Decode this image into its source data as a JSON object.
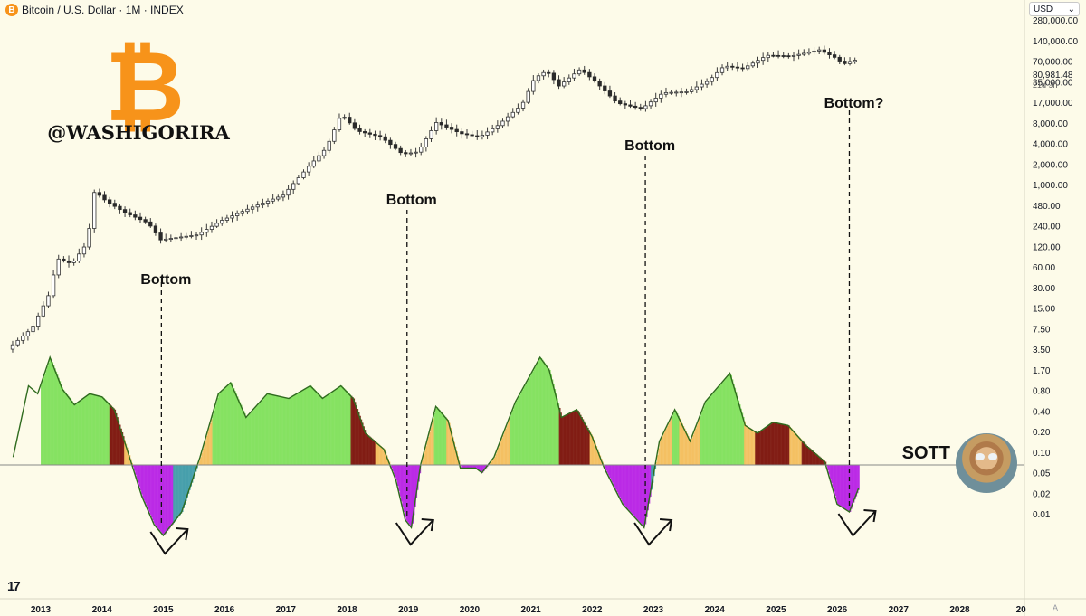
{
  "header": {
    "title": "Bitcoin / U.S. Dollar · 1M · INDEX",
    "currency_label": "USD",
    "currency_caret": "⌄"
  },
  "watermark": {
    "handle": "@WASHIGORIRA",
    "coin_symbol": "₿"
  },
  "logo_mark": "17",
  "axis_corner_label": "A",
  "colors": {
    "background": "#fdfbe9",
    "btc_orange": "#f7931a",
    "candle_up_border": "#333333",
    "candle_down": "#2a2a2a",
    "sott_line": "#2f6b1e",
    "sott_bull_fill": "#7ee05a",
    "sott_mild_fill": "#f1b54a",
    "sott_bear_fill": "#7a0f08",
    "sott_oversold_fill": "#b71ee6",
    "sott_neutral_fill": "#3d9aa8",
    "zero_line": "#888888"
  },
  "chart_data": {
    "type": "line",
    "series_main": "Bitcoin / U.S. Dollar monthly candles (log scale)",
    "current_price_label": "80,981.48",
    "countdown_label": "21d 9h",
    "x_ticks": [
      "2013",
      "2014",
      "2015",
      "2016",
      "2017",
      "2018",
      "2019",
      "2020",
      "2021",
      "2022",
      "2023",
      "2024",
      "2025",
      "2026",
      "2027",
      "2028",
      "20"
    ],
    "price_axis_ticks": [
      "280,000.00",
      "140,000.00",
      "70,000.00",
      "35,000.00",
      "17,000.00",
      "8,000.00",
      "4,000.00",
      "2,000.00",
      "1,000.00",
      "480.00",
      "240.00",
      "120.00",
      "60.00",
      "30.00",
      "15.00",
      "7.50",
      "3.50",
      "1.70",
      "0.80",
      "0.40",
      "0.20",
      "0.10",
      "0.05",
      "0.02",
      "0.01"
    ],
    "price_axis_scale": "log",
    "price_points": [
      {
        "x": 2012.5,
        "y": 6
      },
      {
        "x": 2012.9,
        "y": 12
      },
      {
        "x": 2013.2,
        "y": 40
      },
      {
        "x": 2013.3,
        "y": 120
      },
      {
        "x": 2013.55,
        "y": 100
      },
      {
        "x": 2013.8,
        "y": 200
      },
      {
        "x": 2013.92,
        "y": 1100
      },
      {
        "x": 2014.1,
        "y": 800
      },
      {
        "x": 2014.4,
        "y": 550
      },
      {
        "x": 2014.8,
        "y": 380
      },
      {
        "x": 2015.0,
        "y": 220
      },
      {
        "x": 2015.3,
        "y": 240
      },
      {
        "x": 2015.6,
        "y": 260
      },
      {
        "x": 2016.0,
        "y": 420
      },
      {
        "x": 2016.5,
        "y": 650
      },
      {
        "x": 2017.0,
        "y": 960
      },
      {
        "x": 2017.4,
        "y": 2400
      },
      {
        "x": 2017.7,
        "y": 4500
      },
      {
        "x": 2017.95,
        "y": 14000
      },
      {
        "x": 2018.2,
        "y": 8000
      },
      {
        "x": 2018.6,
        "y": 6500
      },
      {
        "x": 2018.95,
        "y": 3700
      },
      {
        "x": 2019.2,
        "y": 4000
      },
      {
        "x": 2019.5,
        "y": 10500
      },
      {
        "x": 2019.9,
        "y": 7300
      },
      {
        "x": 2020.2,
        "y": 6500
      },
      {
        "x": 2020.5,
        "y": 9500
      },
      {
        "x": 2020.9,
        "y": 19000
      },
      {
        "x": 2021.1,
        "y": 45000
      },
      {
        "x": 2021.3,
        "y": 58000
      },
      {
        "x": 2021.5,
        "y": 35000
      },
      {
        "x": 2021.85,
        "y": 61000
      },
      {
        "x": 2022.1,
        "y": 40000
      },
      {
        "x": 2022.45,
        "y": 20000
      },
      {
        "x": 2022.85,
        "y": 16500
      },
      {
        "x": 2023.2,
        "y": 28000
      },
      {
        "x": 2023.6,
        "y": 29000
      },
      {
        "x": 2023.95,
        "y": 42000
      },
      {
        "x": 2024.2,
        "y": 68000
      },
      {
        "x": 2024.5,
        "y": 62000
      },
      {
        "x": 2024.9,
        "y": 96000
      },
      {
        "x": 2025.3,
        "y": 94000
      },
      {
        "x": 2025.75,
        "y": 115000
      },
      {
        "x": 2026.0,
        "y": 90000
      },
      {
        "x": 2026.15,
        "y": 72000
      },
      {
        "x": 2026.3,
        "y": 82000
      }
    ],
    "sott": {
      "name": "SOTT",
      "zero_line": 0,
      "points": [
        {
          "x": 2012.55,
          "y": 0.05
        },
        {
          "x": 2012.8,
          "y": 0.5
        },
        {
          "x": 2012.95,
          "y": 0.45
        },
        {
          "x": 2013.15,
          "y": 0.68
        },
        {
          "x": 2013.35,
          "y": 0.48
        },
        {
          "x": 2013.55,
          "y": 0.38
        },
        {
          "x": 2013.8,
          "y": 0.45
        },
        {
          "x": 2014.0,
          "y": 0.43
        },
        {
          "x": 2014.2,
          "y": 0.35
        },
        {
          "x": 2014.45,
          "y": 0.05
        },
        {
          "x": 2014.65,
          "y": -0.2
        },
        {
          "x": 2014.85,
          "y": -0.38
        },
        {
          "x": 2015.0,
          "y": -0.45
        },
        {
          "x": 2015.3,
          "y": -0.3
        },
        {
          "x": 2015.6,
          "y": 0.05
        },
        {
          "x": 2015.9,
          "y": 0.45
        },
        {
          "x": 2016.1,
          "y": 0.52
        },
        {
          "x": 2016.35,
          "y": 0.3
        },
        {
          "x": 2016.7,
          "y": 0.45
        },
        {
          "x": 2017.05,
          "y": 0.42
        },
        {
          "x": 2017.4,
          "y": 0.5
        },
        {
          "x": 2017.6,
          "y": 0.42
        },
        {
          "x": 2017.9,
          "y": 0.5
        },
        {
          "x": 2018.1,
          "y": 0.42
        },
        {
          "x": 2018.3,
          "y": 0.2
        },
        {
          "x": 2018.6,
          "y": 0.1
        },
        {
          "x": 2018.8,
          "y": -0.1
        },
        {
          "x": 2018.95,
          "y": -0.35
        },
        {
          "x": 2019.05,
          "y": -0.4
        },
        {
          "x": 2019.2,
          "y": 0.0
        },
        {
          "x": 2019.45,
          "y": 0.37
        },
        {
          "x": 2019.65,
          "y": 0.28
        },
        {
          "x": 2019.85,
          "y": -0.02
        },
        {
          "x": 2020.1,
          "y": -0.02
        },
        {
          "x": 2020.2,
          "y": -0.05
        },
        {
          "x": 2020.4,
          "y": 0.05
        },
        {
          "x": 2020.75,
          "y": 0.4
        },
        {
          "x": 2021.15,
          "y": 0.68
        },
        {
          "x": 2021.3,
          "y": 0.6
        },
        {
          "x": 2021.5,
          "y": 0.3
        },
        {
          "x": 2021.75,
          "y": 0.35
        },
        {
          "x": 2022.0,
          "y": 0.18
        },
        {
          "x": 2022.2,
          "y": -0.02
        },
        {
          "x": 2022.5,
          "y": -0.25
        },
        {
          "x": 2022.85,
          "y": -0.4
        },
        {
          "x": 2023.1,
          "y": 0.15
        },
        {
          "x": 2023.35,
          "y": 0.35
        },
        {
          "x": 2023.6,
          "y": 0.15
        },
        {
          "x": 2023.85,
          "y": 0.4
        },
        {
          "x": 2024.25,
          "y": 0.58
        },
        {
          "x": 2024.5,
          "y": 0.25
        },
        {
          "x": 2024.7,
          "y": 0.2
        },
        {
          "x": 2024.95,
          "y": 0.27
        },
        {
          "x": 2025.2,
          "y": 0.25
        },
        {
          "x": 2025.5,
          "y": 0.12
        },
        {
          "x": 2025.8,
          "y": 0.02
        },
        {
          "x": 2026.0,
          "y": -0.25
        },
        {
          "x": 2026.2,
          "y": -0.3
        },
        {
          "x": 2026.35,
          "y": -0.15
        }
      ],
      "y_range": [
        -0.5,
        0.75
      ]
    },
    "annotations": [
      {
        "label": "Bottom",
        "x": 2014.97
      },
      {
        "label": "Bottom",
        "x": 2018.98
      },
      {
        "label": "Bottom",
        "x": 2022.87
      },
      {
        "label": "Bottom?",
        "x": 2026.2
      }
    ],
    "legend_placement": "right",
    "grid": false
  }
}
